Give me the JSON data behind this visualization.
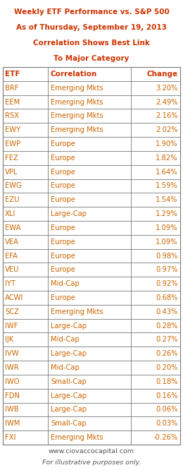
{
  "title_lines": [
    "Weekly ETF Performance vs. S&P 500",
    "As of Thursday, September 19, 2013",
    "Correlation Shows Best Link",
    "To Major Category"
  ],
  "headers": [
    "ETF",
    "Correlation",
    "Change"
  ],
  "rows": [
    [
      "BRF",
      "Emerging Mkts",
      "3.20%"
    ],
    [
      "EEM",
      "Emerging Mkts",
      "2.49%"
    ],
    [
      "RSX",
      "Emerging Mkts",
      "2.16%"
    ],
    [
      "EWY",
      "Emerging Mkts",
      "2.02%"
    ],
    [
      "EWP",
      "Europe",
      "1.90%"
    ],
    [
      "FEZ",
      "Europe",
      "1.82%"
    ],
    [
      "VPL",
      "Europe",
      "1.64%"
    ],
    [
      "EWG",
      "Europe",
      "1.59%"
    ],
    [
      "EZU",
      "Europe",
      "1.54%"
    ],
    [
      "XLI",
      "Large-Cap",
      "1.29%"
    ],
    [
      "EWA",
      "Europe",
      "1.09%"
    ],
    [
      "VEA",
      "Europe",
      "1.09%"
    ],
    [
      "EFA",
      "Europe",
      "0.98%"
    ],
    [
      "VEU",
      "Europe",
      "0.97%"
    ],
    [
      "IYT",
      "Mid-Cap",
      "0.92%"
    ],
    [
      "ACWI",
      "Europe",
      "0.68%"
    ],
    [
      "SCZ",
      "Emerging Mkts",
      "0.43%"
    ],
    [
      "IWF",
      "Large-Cap",
      "0.28%"
    ],
    [
      "IJK",
      "Mid-Cap",
      "0.27%"
    ],
    [
      "IVW",
      "Large-Cap",
      "0.26%"
    ],
    [
      "IWR",
      "Mid-Cap",
      "0.20%"
    ],
    [
      "IWO",
      "Small-Cap",
      "0.18%"
    ],
    [
      "FDN",
      "Large-Cap",
      "0.16%"
    ],
    [
      "IWB",
      "Large-Cap",
      "0.06%"
    ],
    [
      "IWM",
      "Small-Cap",
      "0.03%"
    ],
    [
      "FXI",
      "Emerging Mkts",
      "-0.26%"
    ]
  ],
  "footer_lines": [
    "www.ciovaccocapital.com",
    "For illustrative purposes only."
  ],
  "title_color": "#cc3300",
  "header_color": "#cc3300",
  "data_color": "#cc6600",
  "border_color": "#777777",
  "bg_color": "#ffffff",
  "footer_color": "#555555",
  "title_fontsize": 7.5,
  "header_fontsize": 7.5,
  "data_fontsize": 7.2,
  "footer_fontsize": 6.8
}
